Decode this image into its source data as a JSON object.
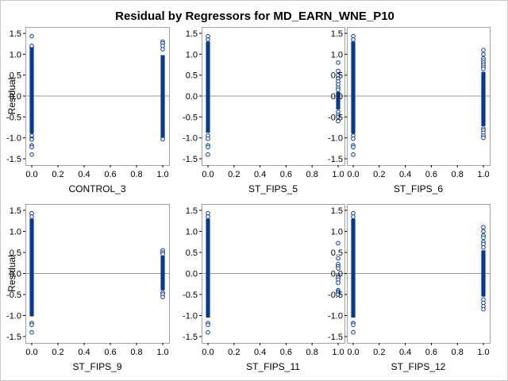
{
  "title": "Residual by Regressors for MD_EARN_WNE_P10",
  "y_axis_label": "Residual",
  "colors": {
    "marker": "#0b3a8c",
    "reference_line": "#9a9a9a",
    "frame": "#a0a0a0",
    "text": "#000000"
  },
  "chart_data": [
    {
      "type": "scatter",
      "xlabel": "CONTROL_3",
      "ylabel": "Residual",
      "xlim": [
        0,
        1
      ],
      "ylim": [
        -1.5,
        1.5
      ],
      "x_ticks": [
        "0.0",
        "0.2",
        "0.4",
        "0.6",
        "0.8",
        "1.0"
      ],
      "y_ticks": [
        "-1.5",
        "-1.0",
        "-0.5",
        "0.0",
        "0.5",
        "1.0",
        "1.5"
      ],
      "reference_y": 0,
      "groups": [
        {
          "x": 0,
          "band": [
            -0.9,
            1.22
          ],
          "outliers": [
            1.43,
            1.2,
            -0.95,
            -1.02,
            -1.04,
            -1.18,
            -1.22,
            -1.4
          ]
        },
        {
          "x": 1,
          "band": [
            -1.0,
            0.98
          ],
          "outliers": [
            1.3,
            1.26,
            1.2,
            1.12,
            -1.03
          ]
        }
      ]
    },
    {
      "type": "scatter",
      "xlabel": "ST_FIPS_5",
      "ylabel": "",
      "xlim": [
        0,
        1
      ],
      "ylim": [
        -1.5,
        1.5
      ],
      "x_ticks": [
        "0.0",
        "0.2",
        "0.4",
        "0.6",
        "0.8",
        "1.0"
      ],
      "y_ticks": [
        "-1.5",
        "-1.0",
        "-0.5",
        "0.0",
        "0.5",
        "1.0",
        "1.5"
      ],
      "reference_y": 0,
      "groups": [
        {
          "x": 0,
          "band": [
            -0.88,
            1.3
          ],
          "outliers": [
            1.43,
            1.35,
            -0.95,
            -1.02,
            -1.18,
            -1.22,
            -1.4
          ]
        },
        {
          "x": 1,
          "band": [
            -0.32,
            0.1
          ],
          "outliers": [
            0.8,
            0.6,
            0.5,
            0.42,
            0.35,
            0.28,
            0.2,
            0.15,
            -0.38,
            -0.45,
            -0.5,
            -0.6
          ]
        }
      ]
    },
    {
      "type": "scatter",
      "xlabel": "ST_FIPS_6",
      "ylabel": "",
      "xlim": [
        0,
        1
      ],
      "ylim": [
        -1.5,
        1.5
      ],
      "x_ticks": [
        "0.0",
        "0.2",
        "0.4",
        "0.6",
        "0.8",
        "1.0"
      ],
      "y_ticks": [
        "-1.5",
        "-1.0",
        "-0.5",
        "0.0",
        "0.5",
        "1.0",
        "1.5"
      ],
      "reference_y": 0,
      "groups": [
        {
          "x": 0,
          "band": [
            -0.9,
            1.3
          ],
          "outliers": [
            1.43,
            1.35,
            -0.95,
            -1.02,
            -1.18,
            -1.22,
            -1.4
          ]
        },
        {
          "x": 1,
          "band": [
            -0.72,
            0.58
          ],
          "outliers": [
            1.1,
            1.0,
            0.9,
            0.85,
            0.8,
            0.75,
            0.7,
            0.65,
            -0.78,
            -0.82,
            -0.88,
            -0.95,
            -1.0
          ]
        }
      ]
    },
    {
      "type": "scatter",
      "xlabel": "ST_FIPS_9",
      "ylabel": "Residual",
      "xlim": [
        0,
        1
      ],
      "ylim": [
        -1.5,
        1.5
      ],
      "x_ticks": [
        "0.0",
        "0.2",
        "0.4",
        "0.6",
        "0.8",
        "1.0"
      ],
      "y_ticks": [
        "-1.5",
        "-1.0",
        "-0.5",
        "0.0",
        "0.5",
        "1.0",
        "1.5"
      ],
      "reference_y": 0,
      "groups": [
        {
          "x": 0,
          "band": [
            -1.02,
            1.3
          ],
          "outliers": [
            1.43,
            1.35,
            -1.18,
            -1.22,
            -1.4
          ]
        },
        {
          "x": 1,
          "band": [
            -0.4,
            0.42
          ],
          "outliers": [
            0.55,
            0.5,
            0.46,
            -0.46,
            -0.5,
            -0.56
          ]
        }
      ]
    },
    {
      "type": "scatter",
      "xlabel": "ST_FIPS_11",
      "ylabel": "",
      "xlim": [
        0,
        1
      ],
      "ylim": [
        -1.5,
        1.5
      ],
      "x_ticks": [
        "0.0",
        "0.2",
        "0.4",
        "0.6",
        "0.8",
        "1.0"
      ],
      "y_ticks": [
        "-1.5",
        "-1.0",
        "-0.5",
        "0.0",
        "0.5",
        "1.0",
        "1.5"
      ],
      "reference_y": 0,
      "groups": [
        {
          "x": 0,
          "band": [
            -1.05,
            1.3
          ],
          "outliers": [
            1.43,
            1.35,
            -1.18,
            -1.22,
            -1.4
          ]
        },
        {
          "x": 1,
          "band": [
            0.05,
            0.05
          ],
          "outliers": [
            0.72,
            0.36,
            0.22,
            0.17,
            0.12,
            -0.05,
            -0.1,
            -0.15,
            -0.22,
            -0.4,
            -0.43,
            -0.46,
            -0.5
          ]
        }
      ]
    },
    {
      "type": "scatter",
      "xlabel": "ST_FIPS_12",
      "ylabel": "",
      "xlim": [
        0,
        1
      ],
      "ylim": [
        -1.5,
        1.5
      ],
      "x_ticks": [
        "0.0",
        "0.2",
        "0.4",
        "0.6",
        "0.8",
        "1.0"
      ],
      "y_ticks": [
        "-1.5",
        "-1.0",
        "-0.5",
        "0.0",
        "0.5",
        "1.0",
        "1.5"
      ],
      "reference_y": 0,
      "groups": [
        {
          "x": 0,
          "band": [
            -1.05,
            1.3
          ],
          "outliers": [
            1.43,
            1.35,
            -1.18,
            -1.22,
            -1.4
          ]
        },
        {
          "x": 1,
          "band": [
            -0.55,
            0.55
          ],
          "outliers": [
            1.1,
            1.0,
            0.9,
            0.85,
            0.75,
            0.7,
            0.62,
            -0.62,
            -0.7,
            -0.78,
            -0.85
          ]
        }
      ]
    }
  ]
}
